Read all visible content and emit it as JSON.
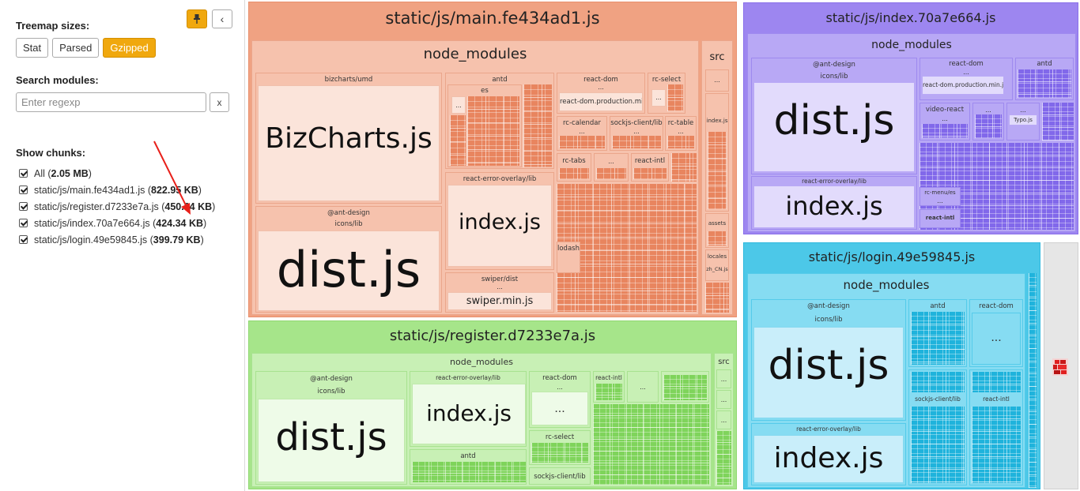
{
  "sidebar": {
    "treemap_sizes_label": "Treemap sizes:",
    "size_buttons": [
      {
        "label": "Stat",
        "active": false
      },
      {
        "label": "Parsed",
        "active": false
      },
      {
        "label": "Gzipped",
        "active": true
      }
    ],
    "search_label": "Search modules:",
    "search_placeholder": "Enter regexp",
    "clear_label": "x",
    "collapse_icon": "‹",
    "pin_icon": "pin-icon",
    "show_chunks_label": "Show chunks:",
    "chunks": [
      {
        "name": "All",
        "size": "2.05 MB",
        "checked": true
      },
      {
        "name": "static/js/main.fe434ad1.js",
        "size": "822.95 KB",
        "checked": true
      },
      {
        "name": "static/js/register.d7233e7a.js",
        "size": "450.64 KB",
        "checked": true
      },
      {
        "name": "static/js/index.70a7e664.js",
        "size": "424.34 KB",
        "checked": true
      },
      {
        "name": "static/js/login.49e59845.js",
        "size": "399.79 KB",
        "checked": true
      }
    ]
  },
  "colors": {
    "accent": "#f0a80e",
    "main_chunk": "#f0a282",
    "register_chunk": "#a6e58a",
    "index_chunk": "#9d86f0",
    "login_chunk": "#4cc8e8",
    "annotation_arrow": "#e8201a"
  },
  "treemap": {
    "main": {
      "title": "static/js/main.fe434ad1.js",
      "node_modules": "node_modules",
      "src": "src",
      "bizcharts_group": "bizcharts/umd",
      "bizcharts_file": "BizCharts.js",
      "ant_design_group": "@ant-design",
      "icons_lib": "icons/lib",
      "dist_file": "dist.js",
      "antd": "antd",
      "es": "es",
      "react_dom": "react-dom",
      "react_dom_prod": "react-dom.production.min.js",
      "rc_select": "rc-select",
      "rc_calendar": "rc-calendar",
      "sockjs_client": "sockjs-client/lib",
      "rc_table": "rc-table",
      "rc_tabs": "rc-tabs",
      "react_intl": "react-intl",
      "react_error_overlay": "react-error-overlay/lib",
      "index_file": "index.js",
      "lodash": "lodash",
      "swiper_group": "swiper/dist",
      "swiper_file": "swiper.min.js",
      "src_index": "index.js",
      "src_assets": "assets",
      "src_locales": "locales",
      "src_zh_cn": "zh_CN.js",
      "ellipsis": "..."
    },
    "register": {
      "title": "static/js/register.d7233e7a.js",
      "node_modules": "node_modules",
      "src": "src",
      "ant_design_group": "@ant-design",
      "icons_lib": "icons/lib",
      "dist_file": "dist.js",
      "react_error_overlay": "react-error-overlay/lib",
      "index_file": "index.js",
      "react_dom": "react-dom",
      "react_intl": "react-intl",
      "rc_select": "rc-select",
      "antd": "antd",
      "sockjs_client": "sockjs-client/lib",
      "ellipsis": "..."
    },
    "index": {
      "title": "static/js/index.70a7e664.js",
      "node_modules": "node_modules",
      "ant_design_group": "@ant-design",
      "icons_lib": "icons/lib",
      "dist_file": "dist.js",
      "react_dom": "react-dom",
      "react_dom_prod": "react-dom.production.min.js",
      "antd": "antd",
      "video_react": "video-react",
      "typo_js": "Typo.js",
      "react_error_overlay": "react-error-overlay/lib",
      "index_file": "index.js",
      "rc_menu": "rc-menu/es",
      "react_intl": "react-intl",
      "ellipsis": "..."
    },
    "login": {
      "title": "static/js/login.49e59845.js",
      "node_modules": "node_modules",
      "ant_design_group": "@ant-design",
      "icons_lib": "icons/lib",
      "dist_file": "dist.js",
      "antd": "antd",
      "react_dom": "react-dom",
      "sockjs_client": "sockjs-client/lib",
      "react_intl": "react-intl",
      "react_error_overlay": "react-error-overlay/lib",
      "index_file": "index.js",
      "ellipsis": "..."
    }
  }
}
